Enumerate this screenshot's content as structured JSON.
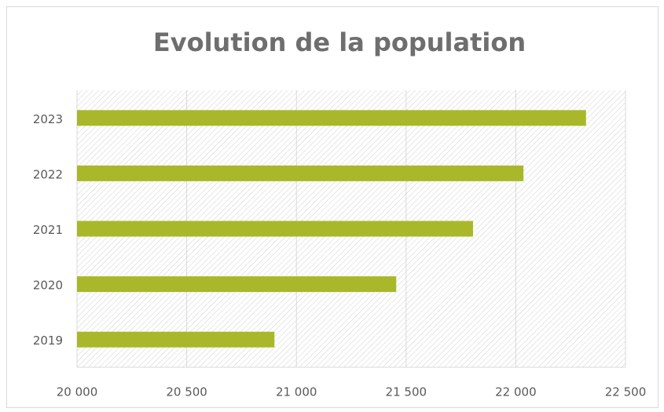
{
  "chart_data": {
    "type": "bar",
    "orientation": "horizontal",
    "title": "Evolution de la population",
    "categories": [
      "2019",
      "2020",
      "2021",
      "2022",
      "2023"
    ],
    "values": [
      20900,
      21455,
      21805,
      22035,
      22320
    ],
    "color": "#a9b82a",
    "xlim": [
      20000,
      22500
    ],
    "xticks": [
      {
        "value": 20000,
        "label": "20 000"
      },
      {
        "value": 20500,
        "label": "20 500"
      },
      {
        "value": 21000,
        "label": "21 000"
      },
      {
        "value": 21500,
        "label": "21 500"
      },
      {
        "value": 22000,
        "label": "22 000"
      },
      {
        "value": 22500,
        "label": "22 500"
      }
    ],
    "grid": true
  }
}
